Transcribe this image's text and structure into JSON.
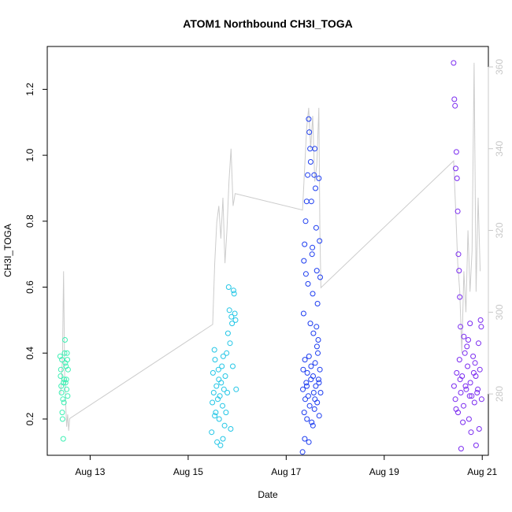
{
  "chart_data": {
    "type": "scatter",
    "title": "ATOM1 Northbound CH3I_TOGA",
    "xlabel": "Date",
    "ylabel": "CH3I_TOGA",
    "xlim": [
      "2016-08-12T03:00",
      "2016-08-21T03:00"
    ],
    "ylim": [
      0.09,
      1.33
    ],
    "y2lim": [
      265,
      365
    ],
    "x_ticks": [
      {
        "label": "Aug 13",
        "value": "2016-08-13T00:00"
      },
      {
        "label": "Aug 15",
        "value": "2016-08-15T00:00"
      },
      {
        "label": "Aug 17",
        "value": "2016-08-17T00:00"
      },
      {
        "label": "Aug 19",
        "value": "2016-08-19T00:00"
      },
      {
        "label": "Aug 21",
        "value": "2016-08-21T00:00"
      }
    ],
    "y_ticks": [
      0.2,
      0.4,
      0.6,
      0.8,
      1.0,
      1.2
    ],
    "y2_ticks": [
      280,
      300,
      320,
      340,
      360
    ],
    "grid": false,
    "series": [
      {
        "color": "#3ef0b4",
        "points": [
          [
            "2016-08-12T09:20",
            0.39
          ],
          [
            "2016-08-12T09:30",
            0.33
          ],
          [
            "2016-08-12T09:40",
            0.35
          ],
          [
            "2016-08-12T09:50",
            0.3
          ],
          [
            "2016-08-12T10:00",
            0.28
          ],
          [
            "2016-08-12T10:10",
            0.38
          ],
          [
            "2016-08-12T10:20",
            0.22
          ],
          [
            "2016-08-12T10:30",
            0.2
          ],
          [
            "2016-08-12T10:40",
            0.26
          ],
          [
            "2016-08-12T10:50",
            0.14
          ],
          [
            "2016-08-12T11:00",
            0.31
          ],
          [
            "2016-08-12T11:10",
            0.25
          ],
          [
            "2016-08-12T11:20",
            0.32
          ],
          [
            "2016-08-12T11:30",
            0.4
          ],
          [
            "2016-08-12T11:40",
            0.44
          ],
          [
            "2016-08-12T11:50",
            0.37
          ],
          [
            "2016-08-12T12:00",
            0.31
          ],
          [
            "2016-08-12T12:10",
            0.36
          ],
          [
            "2016-08-12T12:20",
            0.32
          ],
          [
            "2016-08-12T12:30",
            0.29
          ],
          [
            "2016-08-12T12:40",
            0.4
          ],
          [
            "2016-08-12T12:50",
            0.38
          ],
          [
            "2016-08-12T13:00",
            0.27
          ],
          [
            "2016-08-12T13:10",
            0.35
          ]
        ]
      },
      {
        "color": "#22c6e6",
        "points": [
          [
            "2016-08-15T11:30",
            0.16
          ],
          [
            "2016-08-15T11:50",
            0.25
          ],
          [
            "2016-08-15T12:10",
            0.34
          ],
          [
            "2016-08-15T12:30",
            0.28
          ],
          [
            "2016-08-15T12:50",
            0.41
          ],
          [
            "2016-08-15T13:10",
            0.38
          ],
          [
            "2016-08-15T13:30",
            0.22
          ],
          [
            "2016-08-15T13:50",
            0.3
          ],
          [
            "2016-08-15T14:10",
            0.13
          ],
          [
            "2016-08-15T14:30",
            0.26
          ],
          [
            "2016-08-15T14:50",
            0.35
          ],
          [
            "2016-08-15T15:10",
            0.2
          ],
          [
            "2016-08-15T15:30",
            0.27
          ],
          [
            "2016-08-15T15:50",
            0.12
          ],
          [
            "2016-08-15T16:10",
            0.31
          ],
          [
            "2016-08-15T16:30",
            0.36
          ],
          [
            "2016-08-15T16:50",
            0.24
          ],
          [
            "2016-08-15T17:10",
            0.39
          ],
          [
            "2016-08-15T17:30",
            0.29
          ],
          [
            "2016-08-15T17:50",
            0.18
          ],
          [
            "2016-08-15T18:10",
            0.33
          ],
          [
            "2016-08-15T18:30",
            0.22
          ],
          [
            "2016-08-15T18:50",
            0.4
          ],
          [
            "2016-08-15T19:10",
            0.28
          ],
          [
            "2016-08-15T19:30",
            0.46
          ],
          [
            "2016-08-15T19:50",
            0.6
          ],
          [
            "2016-08-15T20:10",
            0.53
          ],
          [
            "2016-08-15T20:30",
            0.43
          ],
          [
            "2016-08-15T20:50",
            0.17
          ],
          [
            "2016-08-15T21:10",
            0.51
          ],
          [
            "2016-08-15T21:30",
            0.49
          ],
          [
            "2016-08-15T21:50",
            0.36
          ],
          [
            "2016-08-15T22:10",
            0.59
          ],
          [
            "2016-08-15T22:30",
            0.58
          ],
          [
            "2016-08-15T22:50",
            0.52
          ],
          [
            "2016-08-15T23:10",
            0.5
          ],
          [
            "2016-08-15T23:30",
            0.29
          ],
          [
            "2016-08-15T13:00",
            0.21
          ],
          [
            "2016-08-15T15:00",
            0.32
          ],
          [
            "2016-08-15T17:00",
            0.14
          ]
        ]
      },
      {
        "color": "#1c3cf0",
        "points": [
          [
            "2016-08-17T08:00",
            0.1
          ],
          [
            "2016-08-17T08:30",
            0.52
          ],
          [
            "2016-08-17T09:00",
            0.73
          ],
          [
            "2016-08-17T09:30",
            0.8
          ],
          [
            "2016-08-17T10:00",
            0.86
          ],
          [
            "2016-08-17T10:30",
            0.94
          ],
          [
            "2016-08-17T11:00",
            1.11
          ],
          [
            "2016-08-17T11:20",
            1.07
          ],
          [
            "2016-08-17T11:40",
            1.02
          ],
          [
            "2016-08-17T12:00",
            0.98
          ],
          [
            "2016-08-17T12:20",
            0.86
          ],
          [
            "2016-08-17T12:40",
            0.7
          ],
          [
            "2016-08-17T13:00",
            0.58
          ],
          [
            "2016-08-17T13:20",
            0.46
          ],
          [
            "2016-08-17T13:40",
            0.94
          ],
          [
            "2016-08-17T14:00",
            1.02
          ],
          [
            "2016-08-17T14:20",
            0.9
          ],
          [
            "2016-08-17T14:40",
            0.78
          ],
          [
            "2016-08-17T15:00",
            0.65
          ],
          [
            "2016-08-17T15:20",
            0.55
          ],
          [
            "2016-08-17T15:40",
            0.44
          ],
          [
            "2016-08-17T16:00",
            0.93
          ],
          [
            "2016-08-17T16:20",
            0.74
          ],
          [
            "2016-08-17T16:40",
            0.63
          ],
          [
            "2016-08-17T08:40",
            0.68
          ],
          [
            "2016-08-17T09:40",
            0.64
          ],
          [
            "2016-08-17T10:40",
            0.61
          ],
          [
            "2016-08-17T11:50",
            0.49
          ],
          [
            "2016-08-17T12:50",
            0.72
          ],
          [
            "2016-08-17T14:50",
            0.48
          ],
          [
            "2016-08-17T08:10",
            0.29
          ],
          [
            "2016-08-17T08:20",
            0.35
          ],
          [
            "2016-08-17T08:50",
            0.22
          ],
          [
            "2016-08-17T09:10",
            0.38
          ],
          [
            "2016-08-17T09:20",
            0.26
          ],
          [
            "2016-08-17T09:50",
            0.31
          ],
          [
            "2016-08-17T10:10",
            0.2
          ],
          [
            "2016-08-17T10:20",
            0.34
          ],
          [
            "2016-08-17T10:50",
            0.27
          ],
          [
            "2016-08-17T11:10",
            0.39
          ],
          [
            "2016-08-17T11:30",
            0.24
          ],
          [
            "2016-08-17T12:10",
            0.36
          ],
          [
            "2016-08-17T12:30",
            0.19
          ],
          [
            "2016-08-17T13:10",
            0.33
          ],
          [
            "2016-08-17T13:30",
            0.28
          ],
          [
            "2016-08-17T13:50",
            0.23
          ],
          [
            "2016-08-17T14:10",
            0.37
          ],
          [
            "2016-08-17T14:30",
            0.3
          ],
          [
            "2016-08-17T15:10",
            0.25
          ],
          [
            "2016-08-17T15:30",
            0.4
          ],
          [
            "2016-08-17T15:50",
            0.32
          ],
          [
            "2016-08-17T16:10",
            0.21
          ],
          [
            "2016-08-17T16:30",
            0.35
          ],
          [
            "2016-08-17T16:50",
            0.28
          ],
          [
            "2016-08-17T09:05",
            0.14
          ],
          [
            "2016-08-17T11:05",
            0.13
          ],
          [
            "2016-08-17T13:05",
            0.18
          ],
          [
            "2016-08-17T15:05",
            0.42
          ],
          [
            "2016-08-17T10:05",
            0.3
          ],
          [
            "2016-08-17T12:05",
            0.32
          ],
          [
            "2016-08-17T14:05",
            0.26
          ],
          [
            "2016-08-17T16:05",
            0.31
          ]
        ]
      },
      {
        "color": "#7a2af0",
        "points": [
          [
            "2016-08-20T10:00",
            1.28
          ],
          [
            "2016-08-20T10:20",
            1.17
          ],
          [
            "2016-08-20T10:40",
            1.15
          ],
          [
            "2016-08-20T11:00",
            0.96
          ],
          [
            "2016-08-20T11:20",
            1.01
          ],
          [
            "2016-08-20T11:40",
            0.93
          ],
          [
            "2016-08-20T12:00",
            0.83
          ],
          [
            "2016-08-20T12:20",
            0.7
          ],
          [
            "2016-08-20T12:40",
            0.65
          ],
          [
            "2016-08-20T13:00",
            0.57
          ],
          [
            "2016-08-20T13:20",
            0.48
          ],
          [
            "2016-08-20T13:40",
            0.11
          ],
          [
            "2016-08-20T15:00",
            0.45
          ],
          [
            "2016-08-20T18:00",
            0.49
          ],
          [
            "2016-08-20T21:00",
            0.12
          ],
          [
            "2016-08-20T10:10",
            0.3
          ],
          [
            "2016-08-20T10:50",
            0.26
          ],
          [
            "2016-08-20T11:30",
            0.34
          ],
          [
            "2016-08-20T12:10",
            0.22
          ],
          [
            "2016-08-20T12:50",
            0.38
          ],
          [
            "2016-08-20T13:30",
            0.28
          ],
          [
            "2016-08-20T14:10",
            0.33
          ],
          [
            "2016-08-20T14:50",
            0.24
          ],
          [
            "2016-08-20T15:30",
            0.4
          ],
          [
            "2016-08-20T16:10",
            0.29
          ],
          [
            "2016-08-20T16:50",
            0.36
          ],
          [
            "2016-08-20T17:30",
            0.2
          ],
          [
            "2016-08-20T18:10",
            0.31
          ],
          [
            "2016-08-20T18:50",
            0.27
          ],
          [
            "2016-08-20T19:30",
            0.39
          ],
          [
            "2016-08-20T20:10",
            0.25
          ],
          [
            "2016-08-20T20:50",
            0.33
          ],
          [
            "2016-08-20T21:30",
            0.28
          ],
          [
            "2016-08-20T22:10",
            0.43
          ],
          [
            "2016-08-20T22:50",
            0.35
          ],
          [
            "2016-08-20T14:30",
            0.19
          ],
          [
            "2016-08-20T16:30",
            0.42
          ],
          [
            "2016-08-20T18:30",
            0.16
          ],
          [
            "2016-08-20T20:30",
            0.37
          ],
          [
            "2016-08-20T22:30",
            0.17
          ],
          [
            "2016-08-20T23:10",
            0.5
          ],
          [
            "2016-08-20T23:30",
            0.48
          ],
          [
            "2016-08-20T13:10",
            0.32
          ],
          [
            "2016-08-20T15:50",
            0.3
          ],
          [
            "2016-08-20T17:50",
            0.27
          ],
          [
            "2016-08-20T19:50",
            0.34
          ],
          [
            "2016-08-20T21:50",
            0.29
          ],
          [
            "2016-08-20T11:10",
            0.23
          ],
          [
            "2016-08-20T17:10",
            0.44
          ],
          [
            "2016-08-20T23:40",
            0.26
          ]
        ]
      }
    ],
    "secondary_line": {
      "color": "#cccccc",
      "points": [
        [
          "2016-08-12T09:30",
          280
        ],
        [
          "2016-08-12T10:00",
          283
        ],
        [
          "2016-08-12T10:30",
          290
        ],
        [
          "2016-08-12T11:00",
          310
        ],
        [
          "2016-08-12T11:15",
          298
        ],
        [
          "2016-08-12T11:30",
          285
        ],
        [
          "2016-08-12T12:00",
          278
        ],
        [
          "2016-08-12T12:30",
          272
        ],
        [
          "2016-08-12T13:00",
          275
        ],
        [
          "2016-08-12T13:30",
          271
        ],
        [
          "2016-08-12T14:00",
          274
        ],
        [
          "2016-08-15T12:00",
          297
        ],
        [
          "2016-08-15T13:00",
          312
        ],
        [
          "2016-08-15T14:00",
          322
        ],
        [
          "2016-08-15T15:00",
          326
        ],
        [
          "2016-08-15T16:00",
          318
        ],
        [
          "2016-08-15T17:00",
          328
        ],
        [
          "2016-08-15T18:00",
          312
        ],
        [
          "2016-08-15T19:00",
          320
        ],
        [
          "2016-08-15T20:00",
          332
        ],
        [
          "2016-08-15T21:00",
          340
        ],
        [
          "2016-08-15T22:00",
          326
        ],
        [
          "2016-08-15T23:00",
          329
        ],
        [
          "2016-08-17T08:00",
          325
        ],
        [
          "2016-08-17T09:00",
          335
        ],
        [
          "2016-08-17T10:00",
          345
        ],
        [
          "2016-08-17T11:00",
          350
        ],
        [
          "2016-08-17T12:00",
          340
        ],
        [
          "2016-08-17T13:00",
          348
        ],
        [
          "2016-08-17T14:00",
          332
        ],
        [
          "2016-08-17T15:00",
          336
        ],
        [
          "2016-08-17T16:00",
          350
        ],
        [
          "2016-08-17T16:30",
          320
        ],
        [
          "2016-08-17T17:00",
          306
        ],
        [
          "2016-08-20T10:00",
          337
        ],
        [
          "2016-08-20T11:00",
          325
        ],
        [
          "2016-08-20T12:00",
          312
        ],
        [
          "2016-08-20T13:00",
          305
        ],
        [
          "2016-08-20T14:00",
          290
        ],
        [
          "2016-08-20T15:00",
          310
        ],
        [
          "2016-08-20T16:00",
          300
        ],
        [
          "2016-08-20T17:00",
          320
        ],
        [
          "2016-08-20T18:00",
          305
        ],
        [
          "2016-08-20T19:00",
          315
        ],
        [
          "2016-08-20T20:00",
          361
        ],
        [
          "2016-08-20T21:00",
          305
        ],
        [
          "2016-08-20T22:00",
          328
        ],
        [
          "2016-08-20T23:00",
          310
        ]
      ]
    }
  }
}
